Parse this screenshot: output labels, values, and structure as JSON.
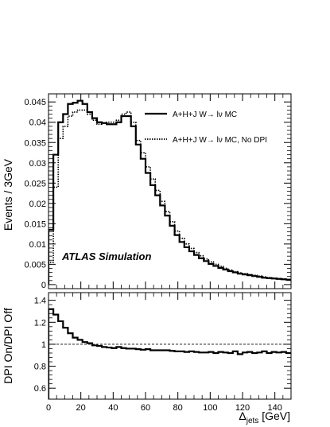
{
  "chart_data": [
    {
      "type": "line",
      "step": true,
      "ylabel": "Events / 3GeV",
      "xlim": [
        0,
        150
      ],
      "ylim": [
        -0.001,
        0.047
      ],
      "yticks": [
        0,
        0.005,
        0.01,
        0.015,
        0.02,
        0.025,
        0.03,
        0.035,
        0.04,
        0.045
      ],
      "ytick_labels": [
        "0",
        "0.005",
        "0.01",
        "0.015",
        "0.02",
        "0.025",
        "0.03",
        "0.035",
        "0.04",
        "0.045"
      ],
      "annotation": "ATLAS Simulation",
      "legend_position": "top-right",
      "bin_width": 3,
      "series": [
        {
          "name": "A+H+J W→ lν MC",
          "style": "solid",
          "color": "#000000",
          "values": [
            0.0135,
            0.032,
            0.04,
            0.042,
            0.0445,
            0.0448,
            0.0453,
            0.0445,
            0.0425,
            0.041,
            0.04,
            0.0398,
            0.0395,
            0.0395,
            0.04,
            0.0415,
            0.0415,
            0.039,
            0.0345,
            0.031,
            0.0275,
            0.0245,
            0.022,
            0.0195,
            0.017,
            0.0145,
            0.0122,
            0.0105,
            0.0092,
            0.0082,
            0.0073,
            0.0065,
            0.0058,
            0.0051,
            0.0046,
            0.0041,
            0.0037,
            0.0033,
            0.003,
            0.0027,
            0.0025,
            0.0023,
            0.0021,
            0.0019,
            0.0017,
            0.0016,
            0.0015,
            0.0014,
            0.0013,
            0.0012
          ]
        },
        {
          "name": "A+H+J W→ lν MC, No DPI",
          "style": "dotted",
          "color": "#000000",
          "values": [
            0.0055,
            0.024,
            0.036,
            0.039,
            0.0415,
            0.0425,
            0.043,
            0.043,
            0.042,
            0.0405,
            0.0395,
            0.0398,
            0.04,
            0.04,
            0.0405,
            0.042,
            0.0425,
            0.04,
            0.0355,
            0.0325,
            0.029,
            0.026,
            0.0232,
            0.0205,
            0.018,
            0.0155,
            0.0132,
            0.0114,
            0.01,
            0.0089,
            0.0079,
            0.0071,
            0.0063,
            0.0056,
            0.005,
            0.0045,
            0.004,
            0.0036,
            0.0032,
            0.0029,
            0.0027,
            0.0025,
            0.0023,
            0.0021,
            0.0019,
            0.0017,
            0.0016,
            0.0015,
            0.0014,
            0.0013
          ]
        }
      ]
    },
    {
      "type": "line",
      "step": true,
      "xlabel_main": "Δ",
      "xlabel_sub": "jets",
      "xlabel_unit": " [GeV]",
      "ylabel": "DPI On/DPI Off",
      "xlim": [
        0,
        150
      ],
      "ylim": [
        0.5,
        1.47
      ],
      "xticks": [
        0,
        20,
        40,
        60,
        80,
        100,
        120,
        140
      ],
      "xtick_labels": [
        "0",
        "20",
        "40",
        "60",
        "80",
        "100",
        "120",
        "140"
      ],
      "yticks": [
        0.6,
        0.8,
        1.0,
        1.2,
        1.4
      ],
      "ytick_labels": [
        "0.6",
        "0.8",
        "1",
        "1.2",
        "1.4"
      ],
      "reference_line": 1.0,
      "bin_width": 3,
      "series": [
        {
          "style": "solid",
          "color": "#000000",
          "values": [
            1.32,
            1.27,
            1.21,
            1.15,
            1.1,
            1.06,
            1.04,
            1.02,
            1.01,
            0.99,
            0.985,
            0.975,
            0.97,
            0.965,
            0.975,
            0.965,
            0.96,
            0.96,
            0.955,
            0.95,
            0.955,
            0.945,
            0.945,
            0.945,
            0.945,
            0.94,
            0.935,
            0.935,
            0.93,
            0.935,
            0.93,
            0.925,
            0.925,
            0.93,
            0.92,
            0.93,
            0.925,
            0.92,
            0.935,
            0.91,
            0.925,
            0.93,
            0.92,
            0.925,
            0.935,
            0.92,
            0.93,
            0.925,
            0.93,
            0.92
          ]
        }
      ]
    }
  ]
}
